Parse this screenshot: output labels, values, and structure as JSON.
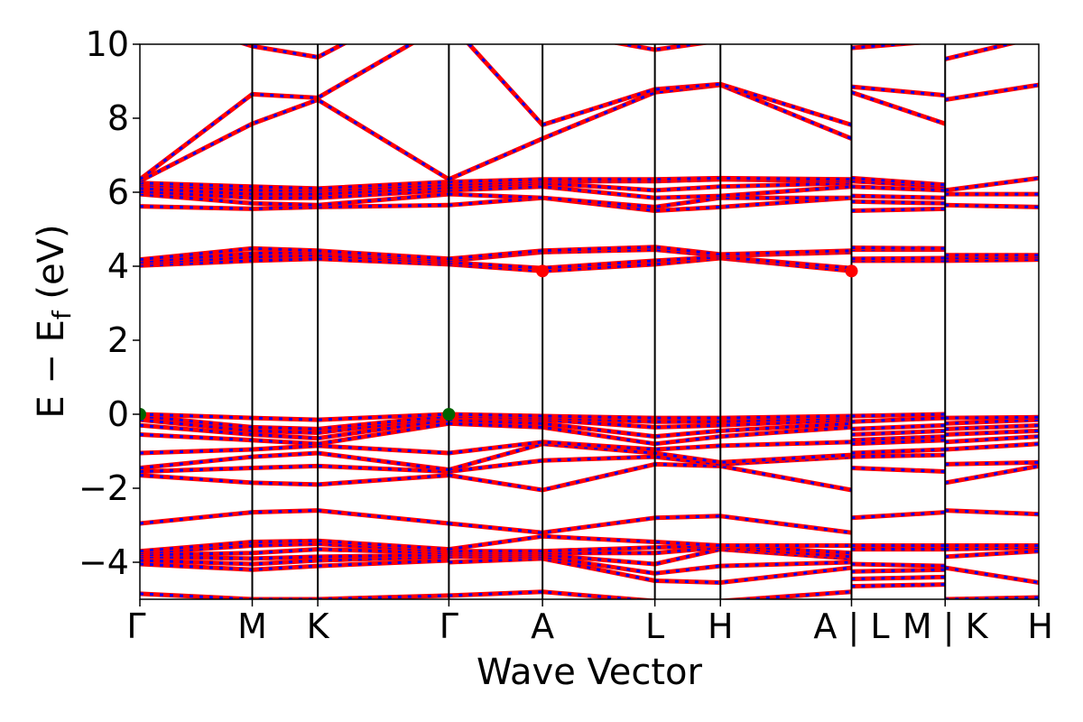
{
  "chart_data": {
    "type": "line",
    "xlabel": "Wave Vector",
    "ylabel": "E − E",
    "ylabel_sub": "f",
    "ylabel_unit": " (eV)",
    "ylim": [
      -5,
      10
    ],
    "yticks": [
      -4,
      -2,
      0,
      2,
      4,
      6,
      8,
      10
    ],
    "ytick_labels": [
      "−4",
      "−2",
      "0",
      "2",
      "4",
      "6",
      "8",
      "10"
    ],
    "k_labels": [
      "Γ",
      "M",
      "K",
      "Γ",
      "A",
      "L",
      "H",
      "A | L",
      "M | K",
      "H"
    ],
    "k_positions": [
      0,
      1.2,
      1.9,
      3.3,
      4.3,
      5.5,
      6.2,
      7.6,
      8.6,
      9.6
    ],
    "grid": false,
    "series_colors": {
      "spin_up": "#ff0000",
      "spin_down": "#0000ff"
    },
    "markers": {
      "vbm": {
        "color": "#006400",
        "points": [
          [
            0,
            0
          ],
          [
            3.3,
            0
          ]
        ]
      },
      "cbm": {
        "color": "#ff0000",
        "points": [
          [
            4.3,
            3.87
          ],
          [
            7.6,
            3.87
          ]
        ]
      }
    },
    "segments": [
      {
        "k": [
          0,
          1.2,
          1.9,
          3.3
        ],
        "bands": [
          [
            -4.85,
            -5.0,
            -5.0,
            -4.9
          ],
          [
            -4.05,
            -4.2,
            -4.1,
            -3.95
          ],
          [
            -3.95,
            -4.05,
            -3.95,
            -3.85
          ],
          [
            -3.85,
            -3.9,
            -3.85,
            -3.8
          ],
          [
            -3.8,
            -3.75,
            -3.65,
            -3.75
          ],
          [
            -3.75,
            -3.55,
            -3.5,
            -3.7
          ],
          [
            -3.7,
            -3.45,
            -3.42,
            -3.65
          ],
          [
            -2.95,
            -2.65,
            -2.6,
            -2.95
          ],
          [
            -1.65,
            -1.85,
            -1.9,
            -1.65
          ],
          [
            -1.55,
            -1.45,
            -1.4,
            -1.55
          ],
          [
            -1.45,
            -1.15,
            -1.05,
            -1.5
          ],
          [
            -1.05,
            -0.95,
            -0.85,
            -1.05
          ],
          [
            -0.55,
            -0.7,
            -0.8,
            -0.25
          ],
          [
            -0.3,
            -0.55,
            -0.65,
            -0.15
          ],
          [
            -0.15,
            -0.45,
            -0.5,
            -0.08
          ],
          [
            -0.05,
            -0.35,
            -0.4,
            -0.05
          ],
          [
            0.0,
            -0.1,
            -0.15,
            0.0
          ],
          [
            4.02,
            4.15,
            4.2,
            4.05
          ],
          [
            4.08,
            4.25,
            4.3,
            4.1
          ],
          [
            4.12,
            4.35,
            4.38,
            4.15
          ],
          [
            4.18,
            4.48,
            4.42,
            4.2
          ],
          [
            5.62,
            5.55,
            5.6,
            5.65
          ],
          [
            5.95,
            5.7,
            5.65,
            5.95
          ],
          [
            6.02,
            5.85,
            5.85,
            6.05
          ],
          [
            6.1,
            5.95,
            5.95,
            6.12
          ],
          [
            6.2,
            6.05,
            6.05,
            6.2
          ],
          [
            6.25,
            6.15,
            6.1,
            6.28
          ],
          [
            6.3,
            7.85,
            8.5,
            6.35
          ],
          [
            6.35,
            8.65,
            8.55,
            10.6
          ],
          [
            10.9,
            9.95,
            9.65,
            11.5
          ]
        ]
      },
      {
        "k": [
          3.3,
          4.3,
          5.5,
          6.2,
          7.6
        ],
        "bands": [
          [
            -4.9,
            -4.8,
            -5.05,
            -5.05,
            -4.8
          ],
          [
            -4.0,
            -3.9,
            -4.5,
            -4.55,
            -4.15
          ],
          [
            -3.85,
            -3.85,
            -4.3,
            -4.1,
            -4.0
          ],
          [
            -3.8,
            -3.8,
            -4.05,
            -3.65,
            -3.9
          ],
          [
            -3.75,
            -3.75,
            -3.75,
            -3.6,
            -3.85
          ],
          [
            -3.7,
            -3.7,
            -3.6,
            -3.55,
            -3.75
          ],
          [
            -3.65,
            -3.3,
            -3.45,
            -3.55,
            -3.55
          ],
          [
            -2.95,
            -3.2,
            -2.8,
            -2.75,
            -3.2
          ],
          [
            -1.65,
            -2.05,
            -1.35,
            -1.4,
            -2.05
          ],
          [
            -1.55,
            -1.25,
            -1.15,
            -1.35,
            -1.15
          ],
          [
            -1.5,
            -0.8,
            -1.05,
            -1.3,
            -1.1
          ],
          [
            -1.05,
            -0.75,
            -0.95,
            -0.85,
            -0.75
          ],
          [
            -0.25,
            -0.35,
            -0.8,
            -0.6,
            -0.35
          ],
          [
            -0.15,
            -0.25,
            -0.6,
            -0.45,
            -0.25
          ],
          [
            -0.08,
            -0.15,
            -0.35,
            -0.3,
            -0.15
          ],
          [
            -0.05,
            -0.1,
            -0.2,
            -0.2,
            -0.1
          ],
          [
            0.0,
            -0.05,
            -0.1,
            -0.1,
            -0.05
          ],
          [
            4.05,
            3.87,
            4.05,
            4.22,
            3.87
          ],
          [
            4.1,
            3.95,
            4.15,
            4.25,
            3.95
          ],
          [
            4.15,
            4.38,
            4.45,
            4.28,
            4.38
          ],
          [
            4.2,
            4.42,
            4.52,
            4.32,
            4.42
          ],
          [
            5.65,
            5.85,
            5.5,
            5.6,
            5.85
          ],
          [
            5.95,
            5.85,
            5.6,
            5.85,
            5.85
          ],
          [
            6.05,
            6.15,
            5.85,
            5.9,
            6.15
          ],
          [
            6.12,
            6.25,
            6.05,
            6.15,
            6.25
          ],
          [
            6.2,
            6.3,
            6.3,
            6.35,
            6.3
          ],
          [
            6.28,
            6.35,
            6.35,
            6.38,
            6.35
          ],
          [
            6.35,
            7.45,
            8.7,
            8.9,
            7.45
          ],
          [
            10.6,
            7.82,
            8.78,
            8.92,
            7.82
          ],
          [
            11.5,
            10.4,
            9.85,
            10.1,
            10.4
          ]
        ]
      },
      {
        "k": [
          7.6,
          8.6
        ],
        "bands": [
          [
            -4.65,
            -4.6
          ],
          [
            -4.45,
            -4.4
          ],
          [
            -4.25,
            -4.2
          ],
          [
            -4.05,
            -4.1
          ],
          [
            -3.65,
            -3.65
          ],
          [
            -3.55,
            -3.55
          ],
          [
            -2.8,
            -2.65
          ],
          [
            -1.45,
            -1.55
          ],
          [
            -1.15,
            -1.1
          ],
          [
            -1.05,
            -0.95
          ],
          [
            -0.8,
            -0.7
          ],
          [
            -0.7,
            -0.6
          ],
          [
            -0.55,
            -0.45
          ],
          [
            -0.4,
            -0.3
          ],
          [
            -0.2,
            -0.1
          ],
          [
            -0.05,
            0.0
          ],
          [
            4.15,
            4.15
          ],
          [
            4.2,
            4.22
          ],
          [
            4.45,
            4.45
          ],
          [
            4.5,
            4.48
          ],
          [
            5.5,
            5.55
          ],
          [
            5.75,
            5.7
          ],
          [
            5.9,
            5.85
          ],
          [
            6.15,
            6.05
          ],
          [
            6.3,
            6.15
          ],
          [
            6.38,
            6.2
          ],
          [
            8.7,
            7.85
          ],
          [
            8.85,
            8.62
          ],
          [
            9.9,
            10.1
          ]
        ]
      },
      {
        "k": [
          8.6,
          9.6
        ],
        "bands": [
          [
            -5.0,
            -4.95
          ],
          [
            -4.15,
            -4.55
          ],
          [
            -3.85,
            -3.7
          ],
          [
            -3.65,
            -3.6
          ],
          [
            -3.55,
            -3.55
          ],
          [
            -2.6,
            -2.7
          ],
          [
            -1.85,
            -1.4
          ],
          [
            -1.35,
            -1.3
          ],
          [
            -0.95,
            -0.8
          ],
          [
            -0.75,
            -0.6
          ],
          [
            -0.55,
            -0.45
          ],
          [
            -0.4,
            -0.3
          ],
          [
            -0.25,
            -0.15
          ],
          [
            -0.1,
            -0.08
          ],
          [
            4.15,
            4.18
          ],
          [
            4.22,
            4.25
          ],
          [
            4.3,
            4.3
          ],
          [
            5.65,
            5.6
          ],
          [
            5.95,
            5.95
          ],
          [
            6.05,
            6.38
          ],
          [
            8.5,
            8.9
          ],
          [
            9.6,
            10.2
          ]
        ]
      }
    ]
  }
}
